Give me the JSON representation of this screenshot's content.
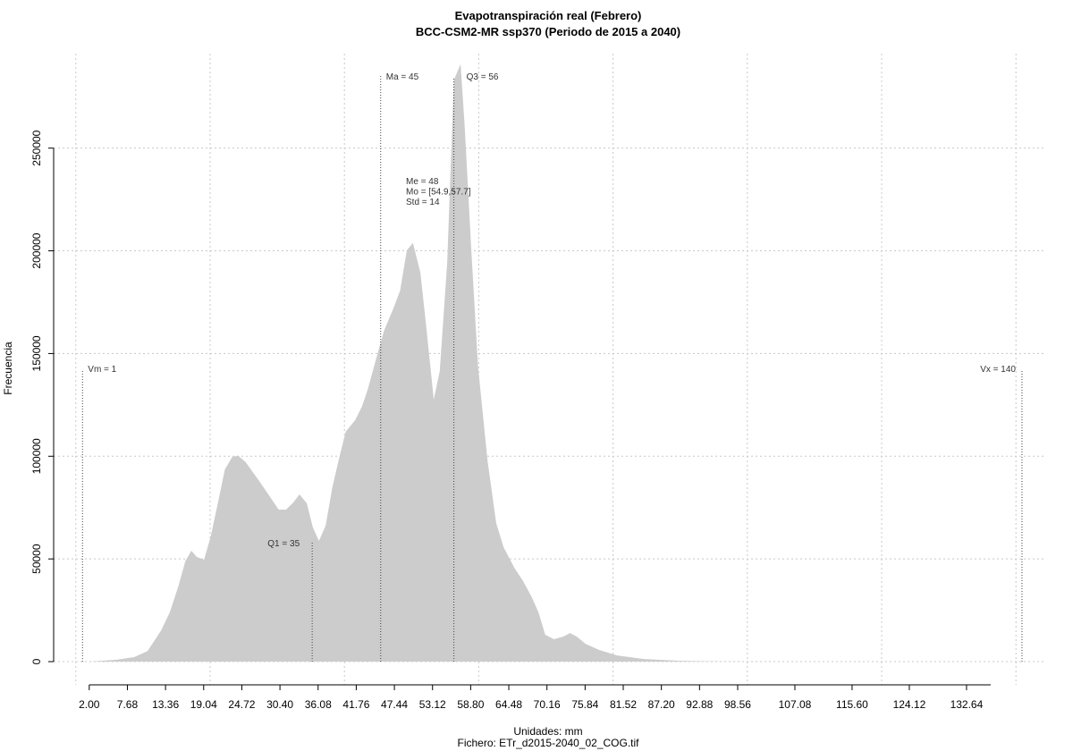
{
  "chart_data": {
    "type": "area",
    "title": "Evapotranspiración real (Febrero)",
    "subtitle": "BCC-CSM2-MR ssp370 (Periodo de 2015 a 2040)",
    "y_label": "Frecuencia",
    "x_label": "Unidades: mm",
    "caption": "Fichero: ETr_d2015-2040_02_COG.tif",
    "color": "#cccccc",
    "grid": true,
    "x": [
      2,
      6,
      8.7,
      10.7,
      12.7,
      14,
      15.3,
      16.3,
      17.2,
      18,
      19.1,
      20.1,
      21.3,
      22.2,
      23.3,
      24.2,
      25.3,
      27.3,
      29.3,
      30.2,
      31.3,
      32.4,
      33.3,
      34.4,
      35.3,
      36.2,
      37.2,
      38.2,
      39.3,
      40.2,
      41.6,
      42.6,
      43.5,
      44.6,
      45.9,
      47.3,
      48.3,
      49.3,
      50.2,
      51.3,
      52.1,
      53.3,
      54.2,
      55.3,
      56.3,
      57.3,
      57.9,
      58.9,
      59.9,
      61.3,
      62.6,
      63.7,
      65.3,
      66.6,
      67.9,
      68.9,
      69.9,
      71.2,
      72.6,
      73.6,
      74.6,
      75.9,
      77.9,
      80.6,
      84.6,
      89.9,
      95.2,
      108.5,
      138.9
    ],
    "values": [
      0,
      900,
      2200,
      5200,
      15200,
      24000,
      37000,
      48800,
      54000,
      51000,
      49600,
      61000,
      79300,
      93600,
      99700,
      100200,
      97100,
      88000,
      78400,
      74000,
      74000,
      77500,
      81400,
      77100,
      65300,
      58800,
      66200,
      84900,
      100200,
      112000,
      117600,
      124100,
      132800,
      145900,
      161100,
      172000,
      180700,
      200300,
      203800,
      189500,
      165500,
      127600,
      141500,
      193800,
      283100,
      290900,
      261300,
      200300,
      143700,
      98000,
      67500,
      55700,
      45700,
      39200,
      31400,
      24000,
      13100,
      10900,
      12200,
      13900,
      12200,
      8700,
      5700,
      3000,
      1300,
      400,
      100,
      0,
      0
    ],
    "xlim": [
      -3.3,
      144.5
    ],
    "ylim": [
      -11300,
      296000
    ],
    "xticks": [
      {
        "value": 2,
        "label": "2.00"
      },
      7.68,
      13.36,
      19.04,
      24.72,
      {
        "value": 30.4,
        "label": "30.40"
      },
      36.08,
      41.76,
      47.44,
      53.12,
      {
        "value": 58.8,
        "label": "58.80"
      },
      64.48,
      70.16,
      75.84,
      81.52,
      {
        "value": 87.2,
        "label": "87.20"
      },
      92.88,
      98.56,
      107.08,
      {
        "value": 115.6,
        "label": "115.60"
      },
      124.12,
      132.64
    ],
    "xgrid": [
      0,
      20,
      40,
      60,
      80,
      100,
      120,
      140
    ],
    "yticks": [
      0,
      50000,
      100000,
      150000,
      200000,
      250000
    ],
    "markers": [
      {
        "label": "Vm = 1",
        "value": 1
      },
      {
        "label": "Q1 = 35",
        "value": 35.2
      },
      {
        "label": "Ma = 45",
        "value": 45.4
      },
      {
        "label": "Q3 = 56",
        "value": 56.3
      },
      {
        "label": "Vx = 140",
        "value": 140.9
      }
    ],
    "stats": [
      "Me = 48",
      "Mo = [54.9,57.7]",
      "Std = 14"
    ]
  }
}
